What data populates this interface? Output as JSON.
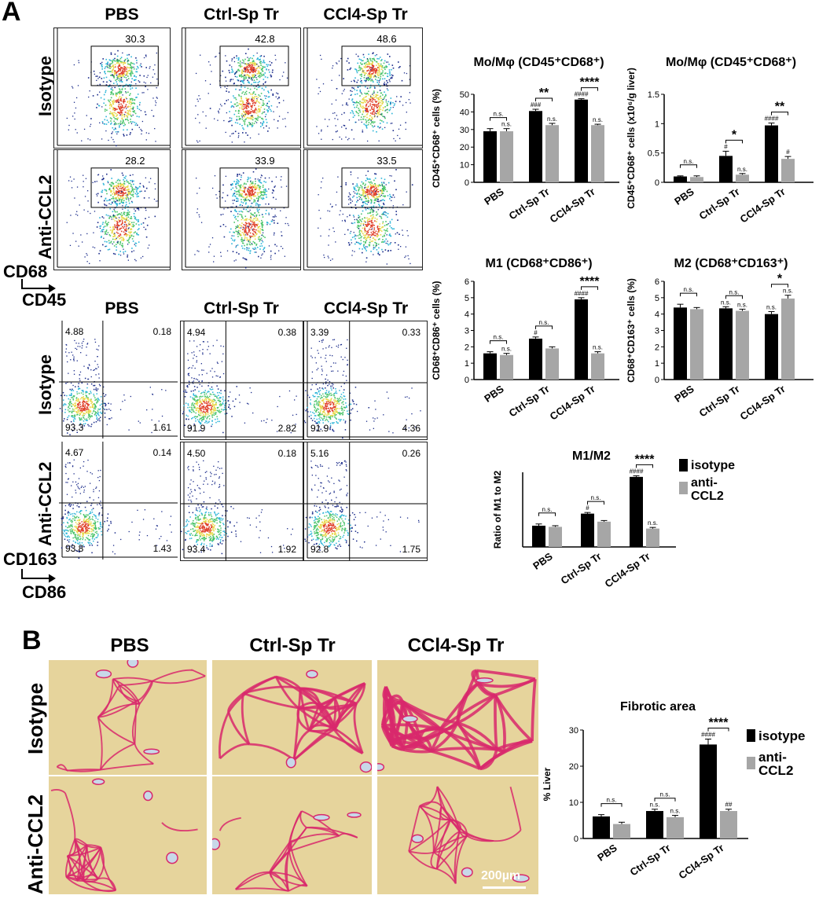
{
  "panel_a": {
    "letter": "A",
    "columns": [
      "PBS",
      "Ctrl-Sp Tr",
      "CCl4-Sp Tr"
    ],
    "rows": [
      "Isotype",
      "Anti-CCL2"
    ],
    "top_y_axis": "CD68",
    "top_x_axis": "CD45",
    "bottom_y_axis": "CD163",
    "bottom_x_axis": "CD86",
    "gate_values": [
      [
        "30.3",
        "42.8",
        "48.6"
      ],
      [
        "28.2",
        "33.9",
        "33.5"
      ]
    ],
    "quadrants": [
      [
        {
          "ul": "4.88",
          "ur": "0.18",
          "ll": "93.3",
          "lr": "1.61"
        },
        {
          "ul": "4.94",
          "ur": "0.38",
          "ll": "91.9",
          "lr": "2.82"
        },
        {
          "ul": "3.39",
          "ur": "0.33",
          "ll": "91.9",
          "lr": "4.36"
        }
      ],
      [
        {
          "ul": "4.67",
          "ur": "0.14",
          "ll": "93.8",
          "lr": "1.43"
        },
        {
          "ul": "4.50",
          "ur": "0.18",
          "ll": "93.4",
          "lr": "1.92"
        },
        {
          "ul": "5.16",
          "ur": "0.26",
          "ll": "92.8",
          "lr": "1.75"
        }
      ]
    ]
  },
  "panel_b": {
    "letter": "B",
    "columns": [
      "PBS",
      "Ctrl-Sp Tr",
      "CCl4-Sp Tr"
    ],
    "rows": [
      "Isotype",
      "Anti-CCL2"
    ],
    "scale_bar": "200µm"
  },
  "legend": {
    "isotype": "isotype",
    "anti_ccl2": "anti-\nCCL2"
  },
  "colors": {
    "isotype": "#000000",
    "anti_ccl2": "#a6a6a6",
    "stain": "#d8286c",
    "tissue": "#e6d49c"
  },
  "chart_data": [
    {
      "id": "mo_pct",
      "type": "bar",
      "title": "Mo/Mφ (CD45⁺CD68⁺)",
      "ylabel": "CD45⁺CD68⁺ cells (%)",
      "categories": [
        "PBS",
        "Ctrl-Sp Tr",
        "CCl4-Sp Tr"
      ],
      "ylim": [
        0,
        50
      ],
      "yticks": [
        0,
        10,
        20,
        30,
        40,
        50
      ],
      "series": [
        {
          "name": "isotype",
          "values": [
            29,
            40.5,
            47
          ],
          "err": [
            1.5,
            1,
            0.5
          ]
        },
        {
          "name": "anti-CCL2",
          "values": [
            29,
            32.5,
            32.5
          ],
          "err": [
            1.5,
            1,
            0.5
          ]
        }
      ],
      "bar_marks": [
        [
          "",
          "n.s."
        ],
        [
          "###",
          "n.s."
        ],
        [
          "####",
          "n.s."
        ]
      ],
      "comparisons": [
        "n.s.",
        "**",
        "****"
      ]
    },
    {
      "id": "mo_abs",
      "type": "bar",
      "title": "Mo/Mφ (CD45⁺CD68⁺)",
      "ylabel": "CD45⁺CD68⁺ cells (x10⁶/g liver)",
      "categories": [
        "PBS",
        "Ctrl-Sp Tr",
        "CCl4-Sp Tr"
      ],
      "ylim": [
        0,
        1.5
      ],
      "yticks": [
        0.0,
        0.5,
        1.0,
        1.5
      ],
      "series": [
        {
          "name": "isotype",
          "values": [
            0.1,
            0.45,
            0.97
          ],
          "err": [
            0.01,
            0.08,
            0.04
          ]
        },
        {
          "name": "anti-CCL2",
          "values": [
            0.09,
            0.13,
            0.4
          ],
          "err": [
            0.02,
            0.02,
            0.04
          ]
        }
      ],
      "bar_marks": [
        [
          "",
          ""
        ],
        [
          "#",
          "n.s."
        ],
        [
          "####",
          "#"
        ]
      ],
      "comparisons": [
        "n.s.",
        "*",
        "**"
      ]
    },
    {
      "id": "m1",
      "type": "bar",
      "title": "M1 (CD68⁺CD86⁺)",
      "ylabel": "CD68⁺CD86⁺ cells (%)",
      "categories": [
        "PBS",
        "Ctrl-Sp Tr",
        "CCl4-Sp Tr"
      ],
      "ylim": [
        0,
        6
      ],
      "yticks": [
        0,
        1,
        2,
        3,
        4,
        5,
        6
      ],
      "series": [
        {
          "name": "isotype",
          "values": [
            1.6,
            2.5,
            4.9
          ],
          "err": [
            0.1,
            0.1,
            0.1
          ]
        },
        {
          "name": "anti-CCL2",
          "values": [
            1.5,
            1.9,
            1.6
          ],
          "err": [
            0.1,
            0.1,
            0.1
          ]
        }
      ],
      "bar_marks": [
        [
          "",
          "n.s."
        ],
        [
          "#",
          ""
        ],
        [
          "####",
          "n.s."
        ]
      ],
      "comparisons": [
        "n.s.",
        "n.s.",
        "****"
      ]
    },
    {
      "id": "m2",
      "type": "bar",
      "title": "M2 (CD68⁺CD163⁺)",
      "ylabel": "CD68⁺CD163⁺ cells (%)",
      "categories": [
        "PBS",
        "Ctrl-Sp Tr",
        "CCl4-Sp Tr"
      ],
      "ylim": [
        0,
        6
      ],
      "yticks": [
        0,
        1,
        2,
        3,
        4,
        5,
        6
      ],
      "series": [
        {
          "name": "isotype",
          "values": [
            4.4,
            4.35,
            4.0
          ],
          "err": [
            0.2,
            0.1,
            0.15
          ]
        },
        {
          "name": "anti-CCL2",
          "values": [
            4.3,
            4.2,
            4.95
          ],
          "err": [
            0.1,
            0.1,
            0.2
          ]
        }
      ],
      "bar_marks": [
        [
          "",
          ""
        ],
        [
          "n.s.",
          "n.s."
        ],
        [
          "n.s.",
          "n.s."
        ]
      ],
      "comparisons": [
        "n.s.",
        "n.s.",
        "*"
      ]
    },
    {
      "id": "m1m2",
      "type": "bar",
      "title": "M1/M2",
      "ylabel": "Ratio of M1 to M2",
      "categories": [
        "PBS",
        "Ctrl-Sp Tr",
        "CCl4-Sp Tr"
      ],
      "ylim": [
        0,
        1.3
      ],
      "yticks": [],
      "series": [
        {
          "name": "isotype",
          "values": [
            0.37,
            0.58,
            1.22
          ],
          "err": [
            0.03,
            0.02,
            0.02
          ]
        },
        {
          "name": "anti-CCL2",
          "values": [
            0.35,
            0.44,
            0.32
          ],
          "err": [
            0.02,
            0.02,
            0.02
          ]
        }
      ],
      "bar_marks": [
        [
          "",
          ""
        ],
        [
          "#",
          ""
        ],
        [
          "####",
          "n.s."
        ]
      ],
      "comparisons": [
        "n.s.",
        "n.s.",
        "****"
      ]
    },
    {
      "id": "fibrotic",
      "type": "bar",
      "title": "Fibrotic area",
      "ylabel": "% Liver",
      "categories": [
        "PBS",
        "Ctrl-Sp Tr",
        "CCl4-Sp Tr"
      ],
      "ylim": [
        0,
        30
      ],
      "yticks": [
        0,
        10,
        20,
        30
      ],
      "series": [
        {
          "name": "isotype",
          "values": [
            6.1,
            7.6,
            26
          ],
          "err": [
            0.5,
            0.5,
            1.5
          ]
        },
        {
          "name": "anti-CCL2",
          "values": [
            4.0,
            5.9,
            7.6
          ],
          "err": [
            0.5,
            0.5,
            0.5
          ]
        }
      ],
      "bar_marks": [
        [
          "",
          ""
        ],
        [
          "n.s.",
          "n.s."
        ],
        [
          "####",
          "##"
        ]
      ],
      "comparisons": [
        "n.s.",
        "n.s.",
        "****"
      ]
    }
  ]
}
